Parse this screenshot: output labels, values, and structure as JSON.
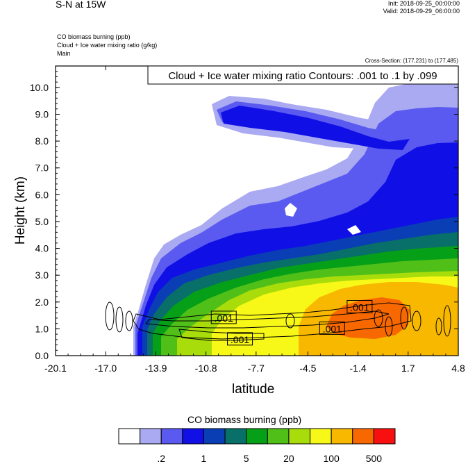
{
  "header": {
    "title": "S-N at 15W",
    "init": "Init: 2018-09-25_00:00:00",
    "valid": "Valid: 2018-09-29_06:00:00",
    "field1": "CO biomass burning   (ppb)",
    "field2": "Cloud + Ice water mixing ratio   (g/kg)",
    "field3": "Main",
    "cross_section": "Cross-Section: (177,231) to (177,485)"
  },
  "chart_data": {
    "type": "heatmap",
    "title": "S-N at 15W",
    "xlabel": "latitude",
    "ylabel": "Height (km)",
    "xlim": [
      -20.1,
      4.8
    ],
    "ylim": [
      0.0,
      10.8
    ],
    "x_ticks": [
      "-20.1",
      "-17.0",
      "-13.9",
      "-10.8",
      "-7.7",
      "-4.5",
      "-1.4",
      "1.7",
      "4.8"
    ],
    "y_ticks": [
      "0.0",
      "1.0",
      "2.0",
      "3.0",
      "4.0",
      "5.0",
      "6.0",
      "7.0",
      "8.0",
      "9.0",
      "10.0"
    ],
    "contour_title": "Cloud + Ice water mixing ratio Contours: .001 to .1 by .099",
    "contour_labels": [
      {
        "text": ".001",
        "lat": -9.7,
        "h": 1.4
      },
      {
        "text": ".001",
        "lat": -8.7,
        "h": 0.6
      },
      {
        "text": ".001",
        "lat": -3.0,
        "h": 1.0
      },
      {
        "text": ".001",
        "lat": -1.3,
        "h": 1.8
      }
    ],
    "colorbar": {
      "title": "CO biomass burning  (ppb)",
      "colors": [
        "#ffffff",
        "#aaaaf2",
        "#5a5af0",
        "#1010e6",
        "#0a3eb4",
        "#087068",
        "#06a018",
        "#50c018",
        "#a8dc0a",
        "#f8f818",
        "#f8b800",
        "#f86800",
        "#f81010"
      ],
      "tick_labels": [
        ".2",
        "1",
        "5",
        "20",
        "100",
        "500"
      ]
    }
  }
}
